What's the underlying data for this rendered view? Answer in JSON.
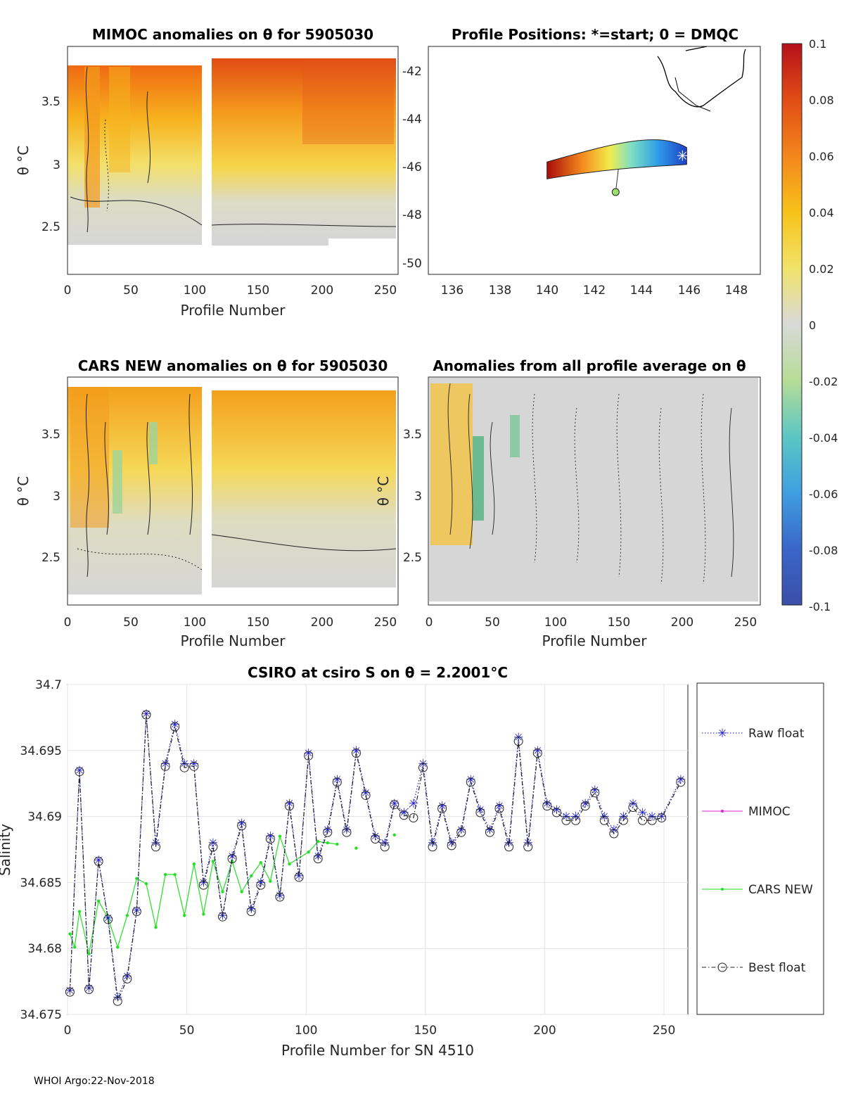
{
  "colorbar": {
    "ticks": [
      "0.1",
      "0.08",
      "0.06",
      "0.04",
      "0.02",
      "0",
      "-0.02",
      "-0.04",
      "-0.06",
      "-0.08",
      "-0.1"
    ],
    "range": [
      -0.1,
      0.1
    ]
  },
  "panels": {
    "mimoc": {
      "title": "MIMOC anomalies on θ  for 5905030",
      "xlabel": "Profile Number",
      "ylabel": "θ °C",
      "xticks": [
        "0",
        "50",
        "100",
        "150",
        "200",
        "250"
      ],
      "yticks": [
        "3.5",
        "3",
        "2.5"
      ]
    },
    "positions": {
      "title": "Profile Positions: *=start; 0 = DMQC",
      "xticks": [
        "136",
        "138",
        "140",
        "142",
        "144",
        "146",
        "148"
      ],
      "yticks": [
        "-42",
        "-44",
        "-46",
        "-48",
        "-50"
      ],
      "track": {
        "lon_start": 145.9,
        "lat_start": -45.5,
        "lon_end": 140.0,
        "lat_end": -46.1,
        "dmqc_lon": 142.9,
        "dmqc_lat": -47.0
      }
    },
    "cars": {
      "title": "CARS NEW anomalies on θ for 5905030",
      "xlabel": "Profile Number",
      "ylabel": "θ °C",
      "xticks": [
        "0",
        "50",
        "100",
        "150",
        "200",
        "250"
      ],
      "yticks": [
        "3.5",
        "3",
        "2.5"
      ]
    },
    "allavg": {
      "title": "Anomalies from all profile average on θ",
      "xlabel": "Profile Number",
      "ylabel": "θ °C",
      "xticks": [
        "0",
        "50",
        "100",
        "150",
        "200",
        "250"
      ],
      "yticks": [
        "3.5",
        "3",
        "2.5"
      ]
    }
  },
  "chart_data": {
    "type": "line",
    "title": "CSIRO at csiro S on θ = 2.2001°C",
    "xlabel": "Profile Number for SN 4510",
    "ylabel": "Salinity",
    "xlim": [
      0,
      260
    ],
    "ylim": [
      34.675,
      34.7
    ],
    "xticks": [
      "0",
      "50",
      "100",
      "150",
      "200",
      "250"
    ],
    "yticks": [
      "34.7",
      "34.695",
      "34.69",
      "34.685",
      "34.68",
      "34.675"
    ],
    "series": [
      {
        "name": "Raw float",
        "x": [
          1,
          5,
          9,
          13,
          17,
          21,
          25,
          29,
          33,
          37,
          41,
          45,
          49,
          53,
          57,
          61,
          65,
          69,
          73,
          77,
          81,
          85,
          89,
          93,
          97,
          101,
          105,
          109,
          113,
          117,
          121,
          125,
          129,
          133,
          137,
          141,
          145,
          149,
          153,
          157,
          161,
          165,
          169,
          173,
          177,
          181,
          185,
          189,
          193,
          197,
          201,
          205,
          209,
          213,
          217,
          221,
          225,
          229,
          233,
          237,
          241,
          245,
          249,
          257
        ],
        "values": [
          34.6768,
          34.6935,
          34.677,
          34.6867,
          34.6823,
          34.6763,
          34.6779,
          34.6829,
          34.6978,
          34.688,
          34.694,
          34.697,
          34.694,
          34.694,
          34.685,
          34.688,
          34.6825,
          34.687,
          34.6895,
          34.683,
          34.685,
          34.6885,
          34.684,
          34.691,
          34.6855,
          34.6948,
          34.687,
          34.689,
          34.6928,
          34.689,
          34.695,
          34.6918,
          34.6885,
          34.688,
          34.691,
          34.6903,
          34.691,
          34.694,
          34.688,
          34.6908,
          34.688,
          34.689,
          34.6928,
          34.6905,
          34.689,
          34.6908,
          34.688,
          34.696,
          34.688,
          34.695,
          34.691,
          34.6905,
          34.69,
          34.69,
          34.691,
          34.692,
          34.69,
          34.689,
          34.69,
          34.691,
          34.6903,
          34.69,
          34.69,
          34.6928
        ]
      },
      {
        "name": "MIMOC",
        "x": [],
        "values": []
      },
      {
        "name": "CARS NEW",
        "x": [
          1,
          3,
          5,
          9,
          13,
          17,
          21,
          25,
          29,
          33,
          37,
          41,
          45,
          49,
          53,
          57,
          61,
          65,
          69,
          73,
          77,
          81,
          85,
          89,
          93,
          101,
          105,
          109,
          113
        ],
        "values": [
          34.6811,
          34.6801,
          34.6828,
          34.6796,
          34.6836,
          34.6823,
          34.6801,
          34.6825,
          34.6853,
          34.6849,
          34.6816,
          34.6856,
          34.6856,
          34.6825,
          34.6864,
          34.6826,
          34.6866,
          34.6843,
          34.6866,
          34.6843,
          34.6855,
          34.6865,
          34.6851,
          34.6885,
          34.6864,
          34.6873,
          34.6881,
          34.688,
          34.6879
        ],
        "extra_points": [
          [
            121,
            34.6876
          ],
          [
            137,
            34.6886
          ]
        ]
      },
      {
        "name": "Best float",
        "x": [
          1,
          5,
          9,
          13,
          17,
          21,
          25,
          29,
          33,
          37,
          41,
          45,
          49,
          53,
          57,
          61,
          65,
          69,
          73,
          77,
          81,
          85,
          89,
          93,
          97,
          101,
          105,
          109,
          113,
          117,
          121,
          125,
          129,
          133,
          137,
          141,
          145,
          149,
          153,
          157,
          161,
          165,
          169,
          173,
          177,
          181,
          185,
          189,
          193,
          197,
          201,
          205,
          209,
          213,
          217,
          221,
          225,
          229,
          233,
          237,
          241,
          245,
          249,
          257
        ],
        "values": [
          34.6767,
          34.6934,
          34.6769,
          34.6866,
          34.6822,
          34.676,
          34.6777,
          34.6828,
          34.6977,
          34.6877,
          34.6938,
          34.6968,
          34.6937,
          34.6938,
          34.6848,
          34.6877,
          34.6824,
          34.6868,
          34.6893,
          34.6828,
          34.6848,
          34.6883,
          34.6839,
          34.6908,
          34.6854,
          34.6946,
          34.6868,
          34.6888,
          34.6926,
          34.6888,
          34.6948,
          34.6916,
          34.6883,
          34.6877,
          34.6909,
          34.6901,
          34.6899,
          34.6937,
          34.6877,
          34.6906,
          34.6878,
          34.6888,
          34.6926,
          34.6903,
          34.6888,
          34.6906,
          34.6877,
          34.6957,
          34.6877,
          34.6948,
          34.6908,
          34.6903,
          34.6897,
          34.6897,
          34.6908,
          34.6918,
          34.6897,
          34.6887,
          34.6897,
          34.6907,
          34.6897,
          34.6897,
          34.6899,
          34.6926
        ]
      }
    ],
    "legend": [
      "Raw float",
      "MIMOC",
      "CARS NEW",
      "Best float"
    ],
    "grid": true
  },
  "footer": "WHOI Argo:22-Nov-2018"
}
